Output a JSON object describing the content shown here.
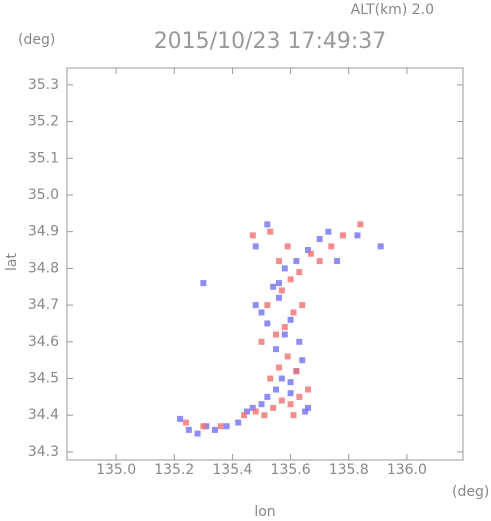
{
  "chart_data": {
    "type": "scatter",
    "title": "2015/10/23 17:49:37",
    "subtitle": "ALT(km) 2.0",
    "y_unit": "(deg)",
    "x_unit": "(deg)",
    "x_label": "lon",
    "y_label": "lat",
    "xlim": [
      134.831,
      136.193
    ],
    "ylim": [
      34.278,
      35.346
    ],
    "xticks": [
      {
        "value": 135,
        "label": "135.0"
      },
      135.2,
      135.4,
      135.6,
      135.8,
      {
        "value": 136,
        "label": "136.0"
      }
    ],
    "yticks": [
      34.3,
      34.4,
      34.5,
      34.6,
      34.7,
      34.8,
      34.9,
      {
        "value": 35,
        "label": "35.0"
      },
      35.1,
      35.2,
      35.3
    ],
    "series": [
      {
        "color": "#7070f0",
        "x": [
          135.22,
          135.25,
          135.28,
          135.31,
          135.34,
          135.38,
          135.42,
          135.45,
          135.47,
          135.5,
          135.52,
          135.55,
          135.57,
          135.6,
          135.62,
          135.64,
          135.66,
          135.55,
          135.58,
          135.52,
          135.5,
          135.48,
          135.56,
          135.6,
          135.63,
          135.54,
          135.58,
          135.62,
          135.66,
          135.7,
          135.73,
          135.76,
          135.48,
          135.52,
          135.56,
          135.3,
          135.91,
          135.83,
          135.6,
          135.65
        ],
        "values": [
          34.39,
          34.36,
          34.35,
          34.37,
          34.36,
          34.37,
          34.38,
          34.41,
          34.42,
          34.43,
          34.45,
          34.47,
          34.5,
          34.49,
          34.52,
          34.55,
          34.42,
          34.58,
          34.62,
          34.65,
          34.68,
          34.7,
          34.72,
          34.66,
          34.6,
          34.75,
          34.8,
          34.82,
          34.85,
          34.88,
          34.9,
          34.82,
          34.86,
          34.92,
          34.76,
          34.76,
          34.86,
          34.89,
          34.46,
          34.41
        ]
      },
      {
        "color": "#f07070",
        "x": [
          135.24,
          135.3,
          135.36,
          135.44,
          135.48,
          135.51,
          135.54,
          135.57,
          135.6,
          135.63,
          135.66,
          135.53,
          135.56,
          135.59,
          135.62,
          135.5,
          135.55,
          135.58,
          135.61,
          135.64,
          135.52,
          135.57,
          135.6,
          135.63,
          135.67,
          135.7,
          135.74,
          135.78,
          135.84,
          135.56,
          135.59,
          135.47,
          135.53,
          135.61
        ],
        "values": [
          34.38,
          34.37,
          34.37,
          34.4,
          34.41,
          34.4,
          34.42,
          34.44,
          34.43,
          34.45,
          34.47,
          34.5,
          34.53,
          34.56,
          34.52,
          34.6,
          34.62,
          34.64,
          34.68,
          34.7,
          34.7,
          34.74,
          34.77,
          34.79,
          34.84,
          34.82,
          34.86,
          34.89,
          34.92,
          34.82,
          34.86,
          34.89,
          34.9,
          34.4
        ]
      }
    ]
  }
}
